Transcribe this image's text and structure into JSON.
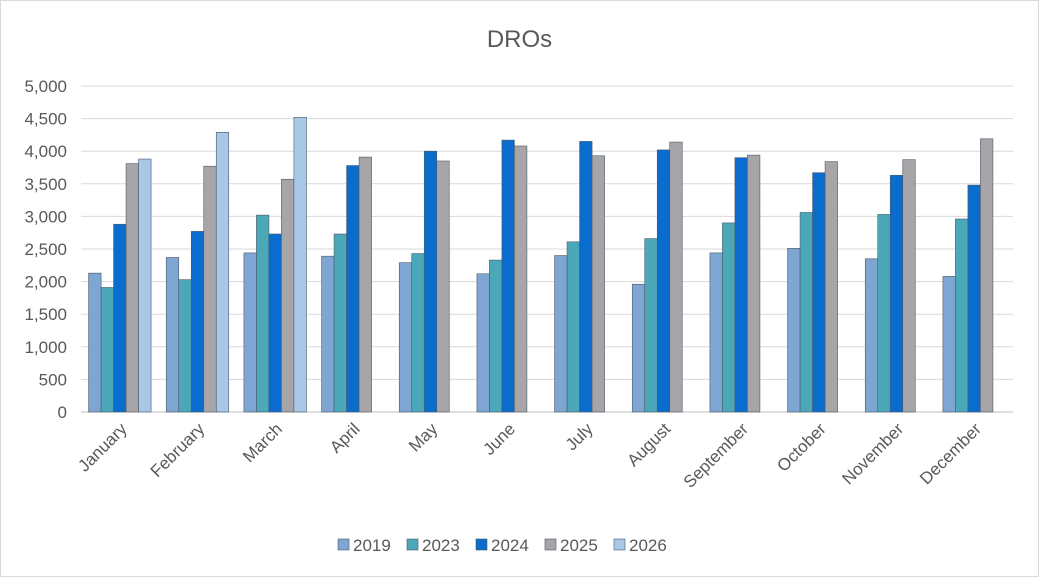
{
  "chart_data": {
    "type": "bar",
    "title": "DROs",
    "xlabel": "",
    "ylabel": "",
    "ylim": [
      0,
      5000
    ],
    "yticks": [
      0,
      500,
      1000,
      1500,
      2000,
      2500,
      3000,
      3500,
      4000,
      4500,
      5000
    ],
    "ytick_labels": [
      "0",
      "500",
      "1,000",
      "1,500",
      "2,000",
      "2,500",
      "3,000",
      "3,500",
      "4,000",
      "4,500",
      "5,000"
    ],
    "grid": true,
    "legend": "bottom",
    "categories": [
      "January",
      "February",
      "March",
      "April",
      "May",
      "June",
      "July",
      "August",
      "September",
      "October",
      "November",
      "December"
    ],
    "series": [
      {
        "name": "2019",
        "color": "#7fa6d2",
        "values": [
          2130,
          2370,
          2440,
          2390,
          2290,
          2120,
          2400,
          1960,
          2440,
          2510,
          2350,
          2080
        ]
      },
      {
        "name": "2023",
        "color": "#4ba8b8",
        "values": [
          1910,
          2030,
          3020,
          2730,
          2430,
          2330,
          2610,
          2660,
          2900,
          3060,
          3030,
          2960
        ]
      },
      {
        "name": "2024",
        "color": "#0a6ccc",
        "values": [
          2880,
          2770,
          2730,
          3780,
          4000,
          4170,
          4150,
          4020,
          3900,
          3670,
          3630,
          3480
        ]
      },
      {
        "name": "2025",
        "color": "#a8a5a8",
        "values": [
          3810,
          3770,
          3570,
          3910,
          3850,
          4080,
          3930,
          4140,
          3940,
          3840,
          3870,
          4190
        ]
      },
      {
        "name": "2026",
        "color": "#a9c7e6",
        "values": [
          3880,
          4290,
          4520,
          null,
          null,
          null,
          null,
          null,
          null,
          null,
          null,
          null
        ]
      }
    ]
  }
}
